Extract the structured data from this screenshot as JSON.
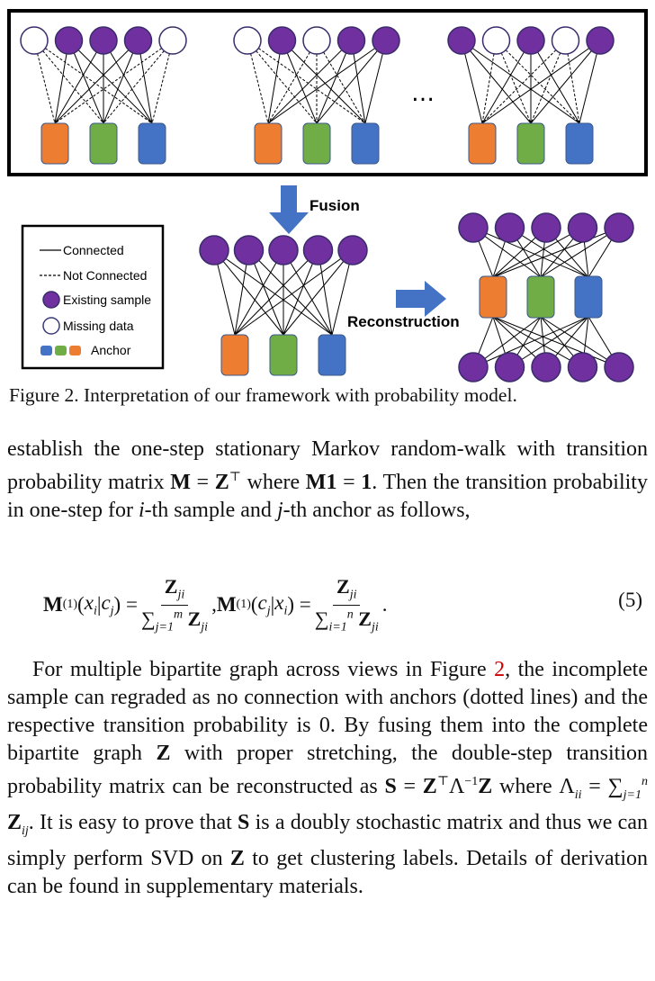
{
  "figure": {
    "fusion_label": "Fusion",
    "reconstruction_label": "Reconstruction",
    "ellipsis": "…",
    "legend": {
      "connected": "Connected",
      "not_connected": "Not Connected",
      "existing_sample": "Existing sample",
      "missing_data": "Missing data",
      "anchor": "Anchor"
    },
    "colors": {
      "sample": "#7030a0",
      "anchor_orange": "#ed7d31",
      "anchor_green": "#70ad47",
      "anchor_blue": "#4472c4",
      "arrow": "#4472c4"
    }
  },
  "caption": "Figure 2. Interpretation of our framework with probability model.",
  "paragraph1": {
    "line1": "establish the one-step stationary Markov random-walk with",
    "t2a": "transition probability matrix ",
    "t2b": " where ",
    "t3a": "Then the transition probability in one-step for ",
    "t3b": "-th sample",
    "t4a": "and ",
    "t4b": "-th anchor as follows,"
  },
  "equation": {
    "number": "(5)"
  },
  "paragraph2": {
    "t1a": "For multiple bipartite graph across views in Figure ",
    "ref": "2",
    "t1b": ", the incomplete sample can regraded as no connection with anchors (dotted lines) and the respective transition probability is ",
    "zero": "0",
    "t1c": ".  By fusing them into the complete bipartite graph ",
    "t1d": " with proper stretching, the double-step transition probability matrix can be reconstructed as ",
    "t1e": " where ",
    "t1f": ".  It is easy to prove that ",
    "t1g": " is a doubly stochastic matrix and thus we can simply perform SVD on ",
    "t1h": " to get clustering labels. Details of derivation can be found in supplementary materials."
  }
}
